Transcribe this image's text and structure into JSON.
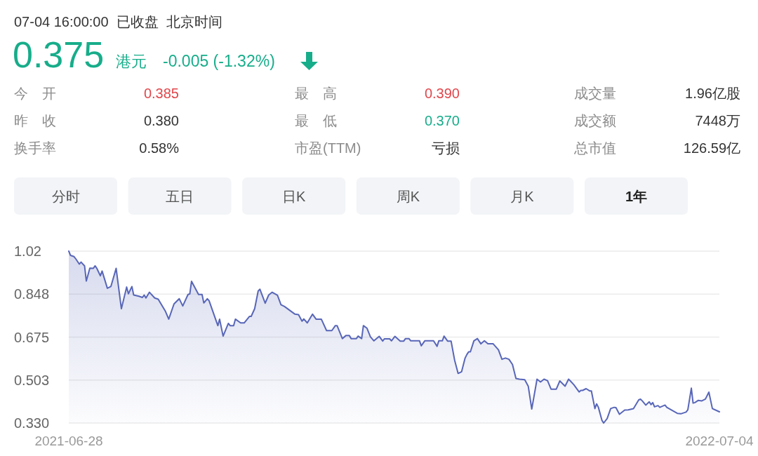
{
  "chart_data": {
    "type": "area",
    "annotations": [
      "07-04 16:00:00  已收盘  北京时间",
      "0.375",
      "港元",
      "-0.005 (-1.32%)",
      "今　开",
      "0.385",
      "最　高",
      "0.390",
      "成交量",
      "1.96亿股",
      "昨　收",
      "0.380",
      "最　低",
      "0.370",
      "成交额",
      "7448万",
      "换手率",
      "0.58%",
      "市盈(TTM)",
      "亏损",
      "总市值",
      "126.59亿",
      "分时",
      "五日",
      "日K",
      "周K",
      "月K",
      "1年"
    ],
    "x": [
      "2021-06-28",
      "2021-06-29",
      "2021-07-01",
      "2021-07-02",
      "2021-07-04",
      "2021-07-05",
      "2021-07-07",
      "2021-07-08",
      "2021-07-10",
      "2021-07-12",
      "2021-07-13",
      "2021-07-14",
      "2021-07-16",
      "2021-07-17",
      "2021-07-20",
      "2021-07-22",
      "2021-07-25",
      "2021-07-28",
      "2021-07-31",
      "2021-08-01",
      "2021-08-03",
      "2021-08-04",
      "2021-08-07",
      "2021-08-09",
      "2021-08-10",
      "2021-08-11",
      "2021-08-13",
      "2021-08-16",
      "2021-08-18",
      "2021-08-22",
      "2021-08-24",
      "2021-08-27",
      "2021-08-30",
      "2021-09-01",
      "2021-09-04",
      "2021-09-05",
      "2021-09-06",
      "2021-09-10",
      "2021-09-12",
      "2021-09-13",
      "2021-09-15",
      "2021-09-16",
      "2021-09-21",
      "2021-09-22",
      "2021-09-24",
      "2021-09-27",
      "2021-09-28",
      "2021-09-30",
      "2021-10-01",
      "2021-10-04",
      "2021-10-06",
      "2021-10-09",
      "2021-10-10",
      "2021-10-12",
      "2021-10-14",
      "2021-10-15",
      "2021-10-18",
      "2021-10-20",
      "2021-10-22",
      "2021-10-25",
      "2021-10-27",
      "2021-10-29",
      "2021-11-04",
      "2021-11-06",
      "2021-11-08",
      "2021-11-09",
      "2021-11-11",
      "2021-11-14",
      "2021-11-16",
      "2021-11-19",
      "2021-11-22",
      "2021-11-25",
      "2021-11-27",
      "2021-11-28",
      "2021-12-01",
      "2021-12-03",
      "2021-12-05",
      "2021-12-06",
      "2021-12-09",
      "2021-12-10",
      "2021-12-12",
      "2021-12-13",
      "2021-12-15",
      "2021-12-17",
      "2021-12-19",
      "2021-12-22",
      "2021-12-24",
      "2021-12-25",
      "2021-12-28",
      "2021-12-29",
      "2021-12-31",
      "2022-01-03",
      "2022-01-05",
      "2022-01-06",
      "2022-01-08",
      "2022-01-09",
      "2022-01-14",
      "2022-01-15",
      "2022-01-17",
      "2022-01-22",
      "2022-01-24",
      "2022-01-25",
      "2022-01-27",
      "2022-01-28",
      "2022-01-30",
      "2022-02-01",
      "2022-02-03",
      "2022-02-05",
      "2022-02-07",
      "2022-02-09",
      "2022-02-10",
      "2022-02-11",
      "2022-02-12",
      "2022-02-14",
      "2022-02-16",
      "2022-02-18",
      "2022-02-20",
      "2022-02-22",
      "2022-02-25",
      "2022-02-28",
      "2022-03-02",
      "2022-03-04",
      "2022-03-06",
      "2022-03-08",
      "2022-03-10",
      "2022-03-12",
      "2022-03-15",
      "2022-03-17",
      "2022-03-19",
      "2022-03-22",
      "2022-03-24",
      "2022-03-26",
      "2022-03-28",
      "2022-03-30",
      "2022-04-02",
      "2022-04-04",
      "2022-04-07",
      "2022-04-09",
      "2022-04-10",
      "2022-04-12",
      "2022-04-15",
      "2022-04-16",
      "2022-04-17",
      "2022-04-19",
      "2022-04-21",
      "2022-04-22",
      "2022-04-24",
      "2022-04-25",
      "2022-04-26",
      "2022-04-28",
      "2022-04-29",
      "2022-05-01",
      "2022-05-03",
      "2022-05-05",
      "2022-05-06",
      "2022-05-08",
      "2022-05-11",
      "2022-05-13",
      "2022-05-16",
      "2022-05-19",
      "2022-05-20",
      "2022-05-21",
      "2022-05-23",
      "2022-05-25",
      "2022-05-26",
      "2022-05-27",
      "2022-05-28",
      "2022-05-30",
      "2022-05-31",
      "2022-06-03",
      "2022-06-04",
      "2022-06-10",
      "2022-06-12",
      "2022-06-15",
      "2022-06-16",
      "2022-06-18",
      "2022-06-19",
      "2022-06-20",
      "2022-06-22",
      "2022-06-24",
      "2022-06-26",
      "2022-06-28",
      "2022-06-30",
      "2022-07-04"
    ],
    "series": [
      {
        "color": "#5866b8",
        "values": [
          1.02,
          1.003,
          0.998,
          0.989,
          0.968,
          0.976,
          0.961,
          0.9,
          0.952,
          0.951,
          0.961,
          0.951,
          0.921,
          0.94,
          0.871,
          0.878,
          0.951,
          0.789,
          0.876,
          0.849,
          0.878,
          0.844,
          0.839,
          0.834,
          0.844,
          0.832,
          0.855,
          0.832,
          0.827,
          0.78,
          0.747,
          0.808,
          0.829,
          0.8,
          0.846,
          0.848,
          0.899,
          0.846,
          0.846,
          0.812,
          0.829,
          0.821,
          0.721,
          0.747,
          0.679,
          0.73,
          0.721,
          0.721,
          0.747,
          0.732,
          0.732,
          0.758,
          0.758,
          0.789,
          0.86,
          0.867,
          0.811,
          0.844,
          0.855,
          0.843,
          0.805,
          0.798,
          0.767,
          0.765,
          0.739,
          0.748,
          0.732,
          0.767,
          0.747,
          0.747,
          0.701,
          0.701,
          0.721,
          0.721,
          0.669,
          0.681,
          0.681,
          0.669,
          0.669,
          0.679,
          0.669,
          0.721,
          0.711,
          0.676,
          0.66,
          0.678,
          0.659,
          0.668,
          0.668,
          0.66,
          0.678,
          0.659,
          0.659,
          0.669,
          0.669,
          0.66,
          0.66,
          0.64,
          0.66,
          0.66,
          0.638,
          0.66,
          0.66,
          0.679,
          0.659,
          0.659,
          0.583,
          0.529,
          0.536,
          0.591,
          0.605,
          0.616,
          0.616,
          0.66,
          0.669,
          0.648,
          0.66,
          0.648,
          0.648,
          0.624,
          0.586,
          0.591,
          0.586,
          0.565,
          0.509,
          0.506,
          0.504,
          0.478,
          0.386,
          0.506,
          0.495,
          0.506,
          0.5,
          0.466,
          0.466,
          0.499,
          0.478,
          0.506,
          0.499,
          0.484,
          0.455,
          0.461,
          0.461,
          0.468,
          0.459,
          0.459,
          0.388,
          0.407,
          0.393,
          0.341,
          0.33,
          0.348,
          0.388,
          0.393,
          0.392,
          0.365,
          0.382,
          0.383,
          0.388,
          0.423,
          0.426,
          0.419,
          0.402,
          0.415,
          0.404,
          0.412,
          0.395,
          0.4,
          0.393,
          0.402,
          0.393,
          0.369,
          0.367,
          0.374,
          0.383,
          0.47,
          0.41,
          0.412,
          0.421,
          0.419,
          0.426,
          0.454,
          0.388,
          0.375
        ]
      }
    ],
    "xlim": [
      "2021-06-28",
      "2022-07-04"
    ],
    "xticks": [
      "2021-06-28",
      "2022-07-04"
    ],
    "ylim": [
      0.33,
      1.02
    ],
    "yticks": [
      {
        "value": 0.33,
        "label": "0.330"
      },
      {
        "value": 0.5025,
        "label": "0.503"
      },
      0.675,
      {
        "value": 0.8475,
        "label": "0.848"
      },
      1.02
    ],
    "grid": "y"
  }
}
